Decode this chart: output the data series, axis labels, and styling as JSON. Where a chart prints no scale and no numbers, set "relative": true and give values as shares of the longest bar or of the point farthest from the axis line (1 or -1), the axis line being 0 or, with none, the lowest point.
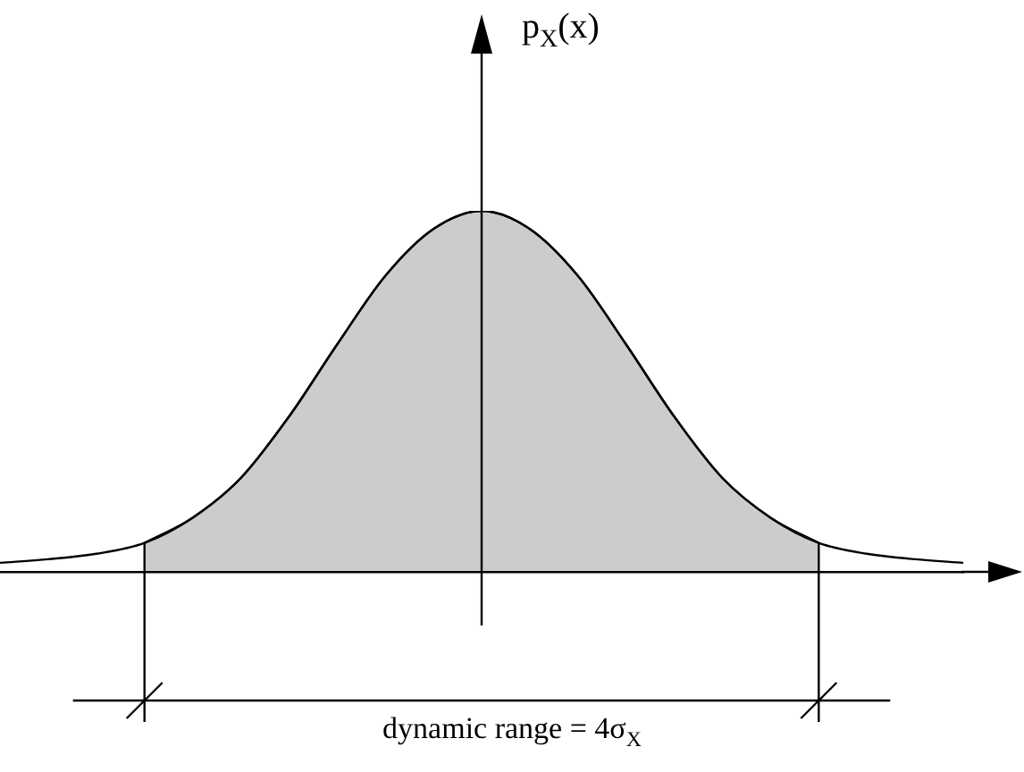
{
  "chart_data": {
    "type": "line",
    "relative": true,
    "ylabel": "p$_{X}$(x)",
    "annotations": [
      "dynamic range = 4σ$_{X}$"
    ],
    "legend": false,
    "marker": "none",
    "categories": [
      null,
      null,
      null,
      null,
      null,
      null,
      null,
      null,
      null,
      null,
      null,
      null,
      null,
      null,
      null,
      null,
      null,
      null,
      null,
      null,
      null
    ],
    "series": [
      {
        "type": "line",
        "color": "#000000",
        "values": [
          0.025,
          0.035,
          0.05,
          0.08,
          0.15,
          0.26,
          0.43,
          0.63,
          0.82,
          0.95,
          1,
          0.95,
          0.82,
          0.63,
          0.43,
          0.26,
          0.15,
          0.08,
          0.05,
          0.035,
          0.025
        ]
      },
      {
        "type": "area",
        "color": "#000000",
        "values": [
          null,
          null,
          null,
          0.08,
          0.15,
          0.26,
          0.43,
          0.63,
          0.82,
          0.95,
          1,
          0.95,
          0.82,
          0.63,
          0.43,
          0.26,
          0.15,
          0.08,
          null,
          null,
          null
        ]
      }
    ]
  }
}
